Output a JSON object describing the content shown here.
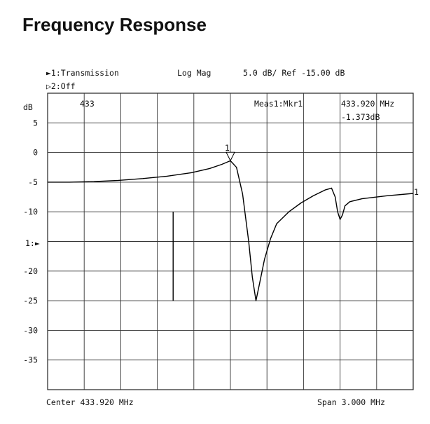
{
  "title": "Frequency Response",
  "header": {
    "trace1_label": "►1:Transmission",
    "format": "Log Mag",
    "scale": "5.0 dB/ Ref -15.00 dB",
    "trace2_label": "▷2:Off",
    "y_unit": "dB",
    "marker_stim": "433",
    "marker_meas_label": "Meas1:Mkr1",
    "marker_freq": "433.920 MHz",
    "marker_value": "-1.373dB",
    "ref_level_label": "1:►",
    "trace_end_label": "1"
  },
  "footer": {
    "center": "Center 433.920 MHz",
    "span": "Span 3.000 MHz"
  },
  "chart_data": {
    "type": "line",
    "title": "Frequency Response",
    "xlabel": "",
    "ylabel": "dB",
    "xlim": [
      432.42,
      435.42
    ],
    "ylim": [
      -40,
      10
    ],
    "y_ticks": [
      {
        "value": 5,
        "label": "5"
      },
      {
        "value": 0,
        "label": "0"
      },
      {
        "value": -5,
        "label": "-5"
      },
      {
        "value": -10,
        "label": "-10"
      },
      {
        "value": -20,
        "label": "-20"
      },
      {
        "value": -25,
        "label": "-25"
      },
      {
        "value": -30,
        "label": "-30"
      },
      {
        "value": -35,
        "label": "-35"
      }
    ],
    "grid": true,
    "x_divisions": 10,
    "y_divisions": 10,
    "series": [
      {
        "x": [
          432.42,
          432.6,
          432.8,
          433.0,
          433.2,
          433.4,
          433.6,
          433.75,
          433.85,
          433.92,
          433.97,
          434.02,
          434.07,
          434.1,
          434.13,
          434.16,
          434.2,
          434.25,
          434.3,
          434.4,
          434.5,
          434.6,
          434.7,
          434.75,
          434.78,
          434.8,
          434.82,
          434.84,
          434.86,
          434.9,
          435.0,
          435.2,
          435.42
        ],
        "y": [
          -5.0,
          -5.0,
          -4.9,
          -4.7,
          -4.4,
          -4.0,
          -3.4,
          -2.7,
          -2.0,
          -1.4,
          -2.5,
          -7.0,
          -15.0,
          -21.0,
          -25.0,
          -22.0,
          -18.0,
          -14.5,
          -12.0,
          -10.0,
          -8.5,
          -7.3,
          -6.3,
          -6.0,
          -7.5,
          -10.0,
          -11.3,
          -10.5,
          -9.0,
          -8.3,
          -7.8,
          -7.3,
          -6.9
        ]
      }
    ],
    "annotations": [
      {
        "type": "marker",
        "label": "1",
        "x": 433.92,
        "y": -1.373
      }
    ],
    "vertical_line": {
      "x": 433.45,
      "y_from": -10,
      "y_to": -25
    }
  }
}
